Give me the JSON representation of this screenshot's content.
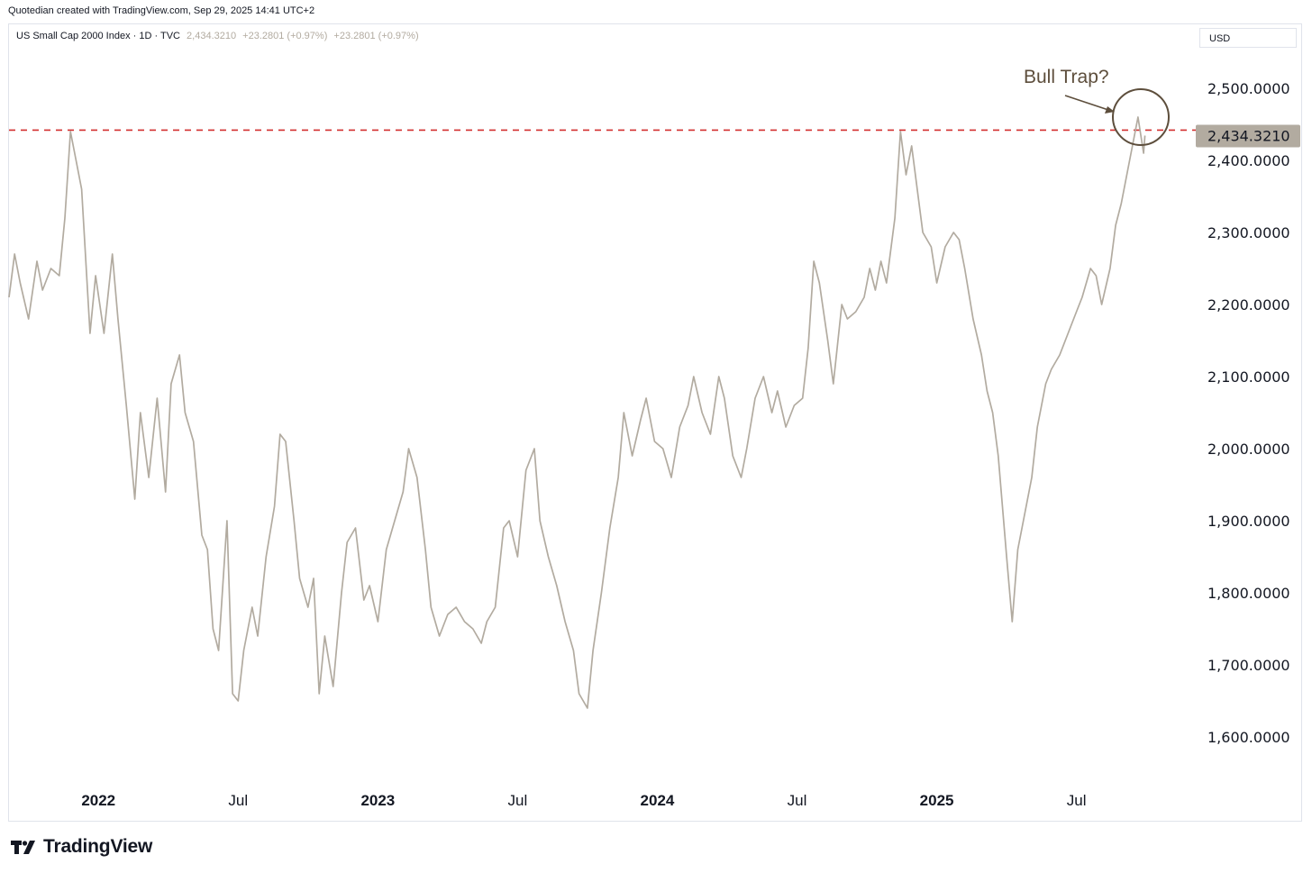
{
  "header": {
    "attribution": "Quotedian created with TradingView.com, Sep 29, 2025 14:41 UTC+2"
  },
  "legend": {
    "symbol": "US Small Cap 2000 Index · 1D · TVC",
    "last": "2,434.3210",
    "change": "+23.2801 (+0.97%)",
    "change2": "+23.2801 (+0.97%)"
  },
  "currency": "USD",
  "price_label": "2,434.3210",
  "annotation": {
    "text": "Bull Trap?"
  },
  "footer": {
    "brand": "TradingView"
  },
  "colors": {
    "line": "#b2aba0",
    "resistance": "#d32f2f",
    "price_tag": "#b2aba0",
    "annotation": "#5d4e3c"
  },
  "chart_data": {
    "type": "line",
    "title": "US Small Cap 2000 Index · 1D · TVC",
    "ylabel": "USD",
    "ylim": [
      1535,
      2560
    ],
    "xlim": [
      2021.68,
      2025.93
    ],
    "y_ticks": [
      {
        "value": 2500,
        "label": "2,500.0000"
      },
      {
        "value": 2400,
        "label": "2,400.0000"
      },
      {
        "value": 2300,
        "label": "2,300.0000"
      },
      {
        "value": 2200,
        "label": "2,200.0000"
      },
      {
        "value": 2100,
        "label": "2,100.0000"
      },
      {
        "value": 2000,
        "label": "2,000.0000"
      },
      {
        "value": 1900,
        "label": "1,900.0000"
      },
      {
        "value": 1800,
        "label": "1,800.0000"
      },
      {
        "value": 1700,
        "label": "1,700.0000"
      },
      {
        "value": 1600,
        "label": "1,600.0000"
      }
    ],
    "x_ticks": [
      {
        "value": 2022.0,
        "label": "2022",
        "bold": true
      },
      {
        "value": 2022.5,
        "label": "Jul",
        "bold": false
      },
      {
        "value": 2023.0,
        "label": "2023",
        "bold": true
      },
      {
        "value": 2023.5,
        "label": "Jul",
        "bold": false
      },
      {
        "value": 2024.0,
        "label": "2024",
        "bold": true
      },
      {
        "value": 2024.5,
        "label": "Jul",
        "bold": false
      },
      {
        "value": 2025.0,
        "label": "2025",
        "bold": true
      },
      {
        "value": 2025.5,
        "label": "Jul",
        "bold": false
      }
    ],
    "resistance_level": 2442,
    "last_value": 2434.321,
    "series": [
      {
        "name": "US Small Cap 2000 Index",
        "points": [
          [
            2021.68,
            2210
          ],
          [
            2021.7,
            2270
          ],
          [
            2021.72,
            2230
          ],
          [
            2021.75,
            2180
          ],
          [
            2021.78,
            2260
          ],
          [
            2021.8,
            2220
          ],
          [
            2021.83,
            2250
          ],
          [
            2021.86,
            2240
          ],
          [
            2021.88,
            2320
          ],
          [
            2021.9,
            2440
          ],
          [
            2021.92,
            2400
          ],
          [
            2021.94,
            2360
          ],
          [
            2021.97,
            2160
          ],
          [
            2021.99,
            2240
          ],
          [
            2022.02,
            2160
          ],
          [
            2022.05,
            2270
          ],
          [
            2022.07,
            2180
          ],
          [
            2022.1,
            2060
          ],
          [
            2022.13,
            1930
          ],
          [
            2022.15,
            2050
          ],
          [
            2022.18,
            1960
          ],
          [
            2022.21,
            2070
          ],
          [
            2022.24,
            1940
          ],
          [
            2022.26,
            2090
          ],
          [
            2022.29,
            2130
          ],
          [
            2022.31,
            2050
          ],
          [
            2022.34,
            2010
          ],
          [
            2022.37,
            1880
          ],
          [
            2022.39,
            1860
          ],
          [
            2022.41,
            1750
          ],
          [
            2022.43,
            1720
          ],
          [
            2022.46,
            1900
          ],
          [
            2022.48,
            1660
          ],
          [
            2022.5,
            1650
          ],
          [
            2022.52,
            1720
          ],
          [
            2022.55,
            1780
          ],
          [
            2022.57,
            1740
          ],
          [
            2022.6,
            1850
          ],
          [
            2022.63,
            1920
          ],
          [
            2022.65,
            2020
          ],
          [
            2022.67,
            2010
          ],
          [
            2022.7,
            1900
          ],
          [
            2022.72,
            1820
          ],
          [
            2022.75,
            1780
          ],
          [
            2022.77,
            1820
          ],
          [
            2022.79,
            1660
          ],
          [
            2022.81,
            1740
          ],
          [
            2022.84,
            1670
          ],
          [
            2022.87,
            1800
          ],
          [
            2022.89,
            1870
          ],
          [
            2022.92,
            1890
          ],
          [
            2022.95,
            1790
          ],
          [
            2022.97,
            1810
          ],
          [
            2023.0,
            1760
          ],
          [
            2023.03,
            1860
          ],
          [
            2023.06,
            1900
          ],
          [
            2023.09,
            1940
          ],
          [
            2023.11,
            2000
          ],
          [
            2023.14,
            1960
          ],
          [
            2023.17,
            1860
          ],
          [
            2023.19,
            1780
          ],
          [
            2023.22,
            1740
          ],
          [
            2023.25,
            1770
          ],
          [
            2023.28,
            1780
          ],
          [
            2023.31,
            1760
          ],
          [
            2023.34,
            1750
          ],
          [
            2023.37,
            1730
          ],
          [
            2023.39,
            1760
          ],
          [
            2023.42,
            1780
          ],
          [
            2023.45,
            1890
          ],
          [
            2023.47,
            1900
          ],
          [
            2023.5,
            1850
          ],
          [
            2023.53,
            1970
          ],
          [
            2023.56,
            2000
          ],
          [
            2023.58,
            1900
          ],
          [
            2023.61,
            1850
          ],
          [
            2023.64,
            1810
          ],
          [
            2023.67,
            1760
          ],
          [
            2023.7,
            1720
          ],
          [
            2023.72,
            1660
          ],
          [
            2023.75,
            1640
          ],
          [
            2023.77,
            1720
          ],
          [
            2023.8,
            1800
          ],
          [
            2023.83,
            1890
          ],
          [
            2023.86,
            1960
          ],
          [
            2023.88,
            2050
          ],
          [
            2023.91,
            1990
          ],
          [
            2023.94,
            2040
          ],
          [
            2023.96,
            2070
          ],
          [
            2023.99,
            2010
          ],
          [
            2024.02,
            2000
          ],
          [
            2024.05,
            1960
          ],
          [
            2024.08,
            2030
          ],
          [
            2024.11,
            2060
          ],
          [
            2024.13,
            2100
          ],
          [
            2024.16,
            2050
          ],
          [
            2024.19,
            2020
          ],
          [
            2024.22,
            2100
          ],
          [
            2024.24,
            2070
          ],
          [
            2024.27,
            1990
          ],
          [
            2024.3,
            1960
          ],
          [
            2024.32,
            2000
          ],
          [
            2024.35,
            2070
          ],
          [
            2024.38,
            2100
          ],
          [
            2024.41,
            2050
          ],
          [
            2024.43,
            2080
          ],
          [
            2024.46,
            2030
          ],
          [
            2024.49,
            2060
          ],
          [
            2024.52,
            2070
          ],
          [
            2024.54,
            2140
          ],
          [
            2024.56,
            2260
          ],
          [
            2024.58,
            2230
          ],
          [
            2024.61,
            2150
          ],
          [
            2024.63,
            2090
          ],
          [
            2024.66,
            2200
          ],
          [
            2024.68,
            2180
          ],
          [
            2024.71,
            2190
          ],
          [
            2024.74,
            2210
          ],
          [
            2024.76,
            2250
          ],
          [
            2024.78,
            2220
          ],
          [
            2024.8,
            2260
          ],
          [
            2024.82,
            2230
          ],
          [
            2024.85,
            2320
          ],
          [
            2024.87,
            2440
          ],
          [
            2024.89,
            2380
          ],
          [
            2024.91,
            2420
          ],
          [
            2024.93,
            2360
          ],
          [
            2024.95,
            2300
          ],
          [
            2024.98,
            2280
          ],
          [
            2025.0,
            2230
          ],
          [
            2025.03,
            2280
          ],
          [
            2025.06,
            2300
          ],
          [
            2025.08,
            2290
          ],
          [
            2025.1,
            2250
          ],
          [
            2025.13,
            2180
          ],
          [
            2025.16,
            2130
          ],
          [
            2025.18,
            2080
          ],
          [
            2025.2,
            2050
          ],
          [
            2025.22,
            1990
          ],
          [
            2025.25,
            1850
          ],
          [
            2025.27,
            1760
          ],
          [
            2025.29,
            1860
          ],
          [
            2025.31,
            1900
          ],
          [
            2025.34,
            1960
          ],
          [
            2025.36,
            2030
          ],
          [
            2025.39,
            2090
          ],
          [
            2025.41,
            2110
          ],
          [
            2025.44,
            2130
          ],
          [
            2025.47,
            2160
          ],
          [
            2025.5,
            2190
          ],
          [
            2025.52,
            2210
          ],
          [
            2025.55,
            2250
          ],
          [
            2025.57,
            2240
          ],
          [
            2025.59,
            2200
          ],
          [
            2025.62,
            2250
          ],
          [
            2025.64,
            2310
          ],
          [
            2025.66,
            2340
          ],
          [
            2025.68,
            2380
          ],
          [
            2025.7,
            2420
          ],
          [
            2025.72,
            2460
          ],
          [
            2025.74,
            2410
          ],
          [
            2025.745,
            2434.32
          ]
        ]
      }
    ]
  }
}
